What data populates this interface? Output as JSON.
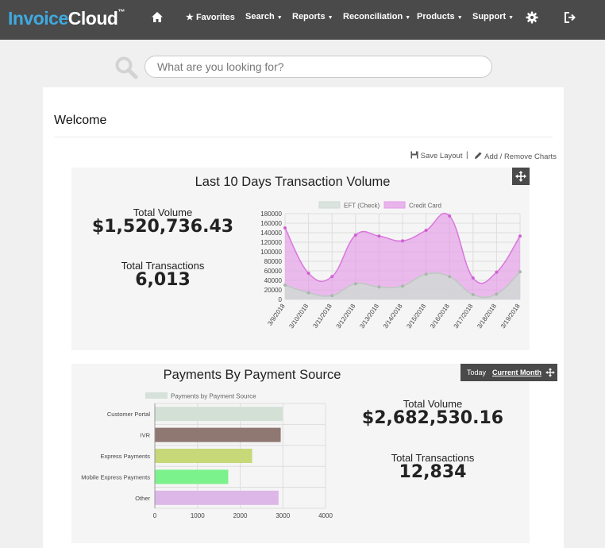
{
  "nav": {
    "logo_part1": "Invoice",
    "logo_part2": "Cloud",
    "logo_tm": "™",
    "home_icon": "home-icon",
    "favorites": "Favorites",
    "search": "Search",
    "reports": "Reports",
    "reconciliation": "Reconciliation",
    "products": "Products",
    "support": "Support",
    "settings_icon": "gear-icon",
    "logout_icon": "logout-icon"
  },
  "search": {
    "placeholder": "What are you looking for?"
  },
  "page": {
    "welcome": "Welcome",
    "save_layout": "Save Layout",
    "separator": "|",
    "add_remove_charts": "Add / Remove Charts"
  },
  "transaction_card": {
    "title": "Last 10 Days Transaction Volume",
    "total_volume_label": "Total Volume",
    "total_volume_value": "$1,520,736.43",
    "total_transactions_label": "Total Transactions",
    "total_transactions_value": "6,013"
  },
  "payment_card": {
    "title": "Payments By Payment Source",
    "period_today": "Today",
    "period_current_month": "Current Month",
    "total_volume_label": "Total Volume",
    "total_volume_value": "$2,682,530.16",
    "total_transactions_label": "Total Transactions",
    "total_transactions_value": "12,834"
  },
  "colors": {
    "nav_bg": "#4a4a4a",
    "logo_blue": "#3fa9e0",
    "eft": "#cfdcd4",
    "credit_card": "#e39ae6",
    "customer_portal": "#d3e0d6",
    "ivr": "#8f7872",
    "express_payments": "#c6d878",
    "mobile_express": "#7bf28c",
    "other": "#dcb7e8"
  },
  "chart_data": [
    {
      "type": "area",
      "x": [
        "3/9/2018",
        "3/10/2018",
        "3/11/2018",
        "3/12/2018",
        "3/13/2018",
        "3/14/2018",
        "3/15/2018",
        "3/16/2018",
        "3/17/2018",
        "3/18/2018",
        "3/19/2018"
      ],
      "series": [
        {
          "name": "EFT (Check)",
          "values": [
            30000,
            14000,
            8000,
            33000,
            26000,
            28000,
            53000,
            48000,
            10000,
            11000,
            58000
          ]
        },
        {
          "name": "Credit Card",
          "values": [
            150000,
            55000,
            48000,
            135000,
            133000,
            123000,
            145000,
            175000,
            45000,
            57000,
            133000
          ]
        }
      ],
      "y_ticks": [
        "0",
        "20000",
        "40000",
        "60000",
        "80000",
        "100000",
        "120000",
        "140000",
        "160000",
        "180000"
      ],
      "ylim": [
        0,
        180000
      ],
      "legend": "top",
      "grid": true
    },
    {
      "type": "bar",
      "orientation": "horizontal",
      "categories": [
        "Customer Portal",
        "IVR",
        "Express Payments",
        "Mobile Express Payments",
        "Other"
      ],
      "series": [
        {
          "name": "Payments by Payment Source",
          "values": [
            3000,
            2950,
            2280,
            1720,
            2900
          ]
        }
      ],
      "x_ticks": [
        "0",
        "1000",
        "2000",
        "3000",
        "4000"
      ],
      "xlim": [
        0,
        4000
      ],
      "legend": "top",
      "grid": true
    }
  ]
}
